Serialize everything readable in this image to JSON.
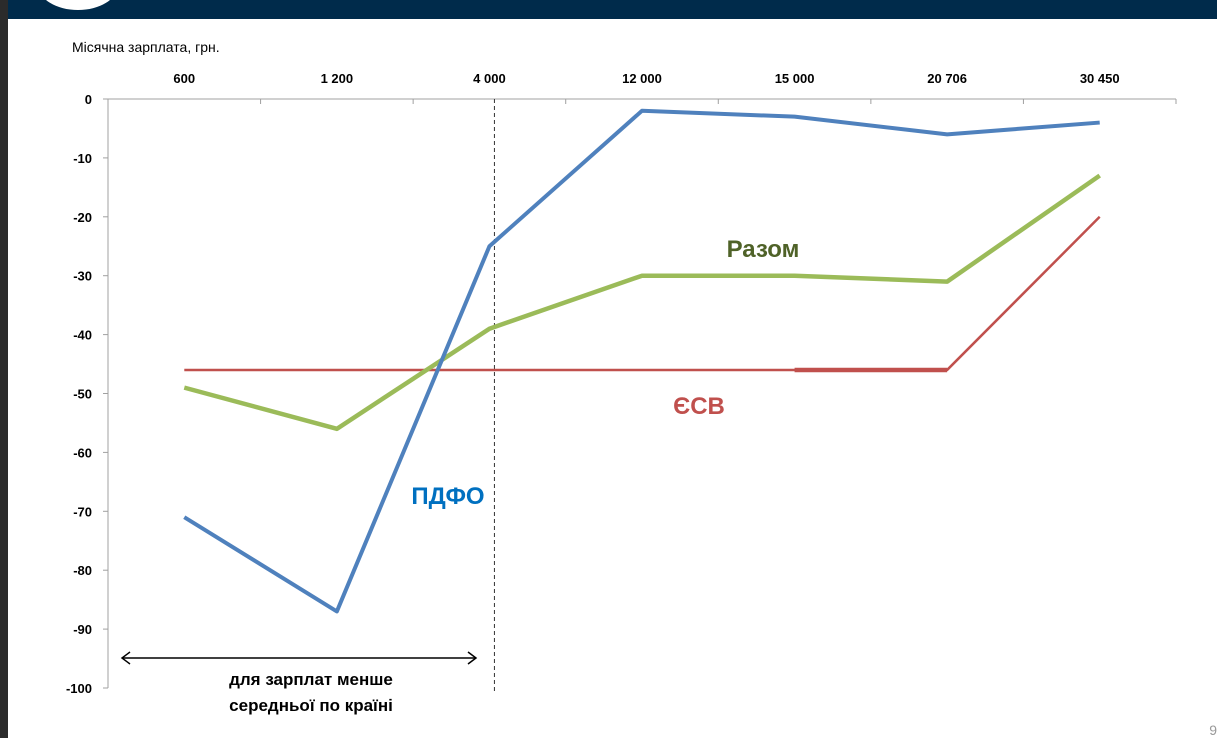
{
  "slide": {
    "page_number": "9"
  },
  "chart_data": {
    "type": "line",
    "title": "",
    "xlabel": "Місячна зарплата, грн.",
    "ylabel": "",
    "categories": [
      "600",
      "1 200",
      "4 000",
      "12 000",
      "15 000",
      "20 706",
      "30 450"
    ],
    "ylim": [
      -100,
      0
    ],
    "yticks": [
      "0",
      "-10",
      "-20",
      "-30",
      "-40",
      "-50",
      "-60",
      "-70",
      "-80",
      "-90",
      "-100"
    ],
    "x_axis_position": "top",
    "grid": false,
    "series": [
      {
        "name": "ПДФО",
        "color": "#4f81bd",
        "values": [
          -71,
          -87,
          -25,
          -2,
          -3,
          -6,
          -4
        ]
      },
      {
        "name": "Разом",
        "color": "#9bbb59",
        "label_color": "#4f6228",
        "values": [
          -49,
          -56,
          -39,
          -30,
          -30,
          -31,
          -13
        ]
      },
      {
        "name": "ЄСВ",
        "color": "#c0504d",
        "values": [
          -46,
          -46,
          -46,
          -46,
          -46,
          -46,
          -20
        ]
      }
    ],
    "annotations": {
      "reference_line_at": "4 000",
      "range_arrow_text": [
        "для зарплат менше",
        "середньої по країні"
      ]
    }
  }
}
